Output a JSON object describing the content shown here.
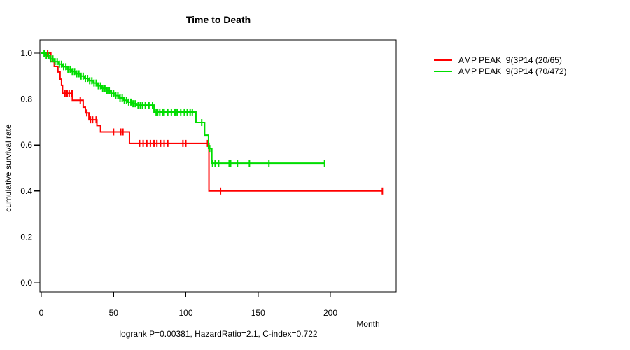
{
  "title": "Time to Death",
  "axes": {
    "y_label": "cumulative survival rate",
    "x_label": "Month",
    "y_ticks": [
      {
        "value": 1.0,
        "label": "1.0"
      },
      {
        "value": 0.8,
        "label": "0.8"
      },
      {
        "value": 0.6,
        "label": "0.6"
      },
      {
        "value": 0.4,
        "label": "0.4"
      },
      {
        "value": 0.2,
        "label": "0.2"
      },
      {
        "value": 0.0,
        "label": "0.0"
      }
    ],
    "x_ticks": [
      {
        "value": 0,
        "label": "0"
      },
      {
        "value": 50,
        "label": "50"
      },
      {
        "value": 100,
        "label": "100"
      },
      {
        "value": 150,
        "label": "150"
      },
      {
        "value": 200,
        "label": "200"
      }
    ]
  },
  "footer": "logrank P=0.00381, HazardRatio=2.1, C-index=0.722",
  "legend": [
    {
      "label": "AMP PEAK  9(3P14 (20/65)",
      "color": "#ff0000"
    },
    {
      "label": "AMP PEAK  9(3P14 (70/472)",
      "color": "#00dd00"
    }
  ],
  "chart_data": {
    "type": "line",
    "subtype": "kaplan-meier-step",
    "title": "Time to Death",
    "xlabel": "Month",
    "ylabel": "cumulative survival rate",
    "xlim": [
      0,
      245
    ],
    "ylim": [
      0.0,
      1.04
    ],
    "grid": false,
    "legend_position": "right-outside",
    "annotation": "logrank P=0.00381, HazardRatio=2.1, C-index=0.722",
    "series": [
      {
        "name": "AMP PEAK  9(3P14 (20/65)",
        "color": "#ff0000",
        "events_over_n": "20/65",
        "end_month": 236,
        "steps": [
          [
            0,
            1.0
          ],
          [
            6.6,
            0.963
          ],
          [
            9,
            0.942
          ],
          [
            11.5,
            0.918
          ],
          [
            13,
            0.887
          ],
          [
            14,
            0.86
          ],
          [
            14.7,
            0.825
          ],
          [
            21.5,
            0.795
          ],
          [
            29,
            0.765
          ],
          [
            30.5,
            0.74
          ],
          [
            33,
            0.71
          ],
          [
            38.5,
            0.685
          ],
          [
            41,
            0.657
          ],
          [
            61,
            0.607
          ],
          [
            116,
            0.4
          ]
        ],
        "censor_months": [
          4.4,
          16.4,
          17.9,
          19.3,
          21.3,
          27,
          31.5,
          34,
          35.5,
          38,
          50,
          55,
          56.5,
          68,
          70.5,
          73,
          75.5,
          78,
          80,
          82.5,
          85,
          87.5,
          98,
          100,
          115,
          124,
          236
        ]
      },
      {
        "name": "AMP PEAK  9(3P14 (70/472)",
        "color": "#00dd00",
        "events_over_n": "70/472",
        "end_month": 196,
        "steps": [
          [
            0,
            1.0
          ],
          [
            3,
            0.99
          ],
          [
            6,
            0.975
          ],
          [
            9,
            0.963
          ],
          [
            12,
            0.952
          ],
          [
            15,
            0.941
          ],
          [
            18,
            0.93
          ],
          [
            21,
            0.92
          ],
          [
            24,
            0.91
          ],
          [
            27,
            0.9
          ],
          [
            30,
            0.89
          ],
          [
            33,
            0.88
          ],
          [
            36,
            0.87
          ],
          [
            39,
            0.858
          ],
          [
            42,
            0.847
          ],
          [
            45,
            0.836
          ],
          [
            48,
            0.825
          ],
          [
            51,
            0.815
          ],
          [
            54,
            0.805
          ],
          [
            57,
            0.795
          ],
          [
            60,
            0.787
          ],
          [
            63,
            0.78
          ],
          [
            66,
            0.774
          ],
          [
            78,
            0.744
          ],
          [
            107,
            0.698
          ],
          [
            113,
            0.643
          ],
          [
            115.7,
            0.585
          ],
          [
            118,
            0.521
          ]
        ],
        "censor_months": [
          2,
          3.5,
          5,
          6.5,
          8,
          9.5,
          11,
          12.5,
          14,
          15.5,
          17,
          18.5,
          20,
          21.5,
          23,
          24.5,
          26,
          27.5,
          29,
          30.5,
          32,
          33.5,
          35,
          36.5,
          38,
          39.5,
          41,
          42.5,
          44,
          45.5,
          47,
          48.5,
          50,
          51.5,
          53,
          54.5,
          56,
          57.5,
          59,
          60.5,
          62,
          63.5,
          65,
          67,
          68.5,
          70,
          72,
          74.5,
          77,
          79.5,
          80.5,
          82,
          84,
          85,
          87.5,
          90,
          92.5,
          94,
          96.5,
          99,
          101,
          103,
          104.5,
          111,
          116.5,
          118.5,
          120.3,
          122.7,
          130,
          131,
          135.7,
          144,
          157.5,
          196
        ]
      }
    ]
  }
}
